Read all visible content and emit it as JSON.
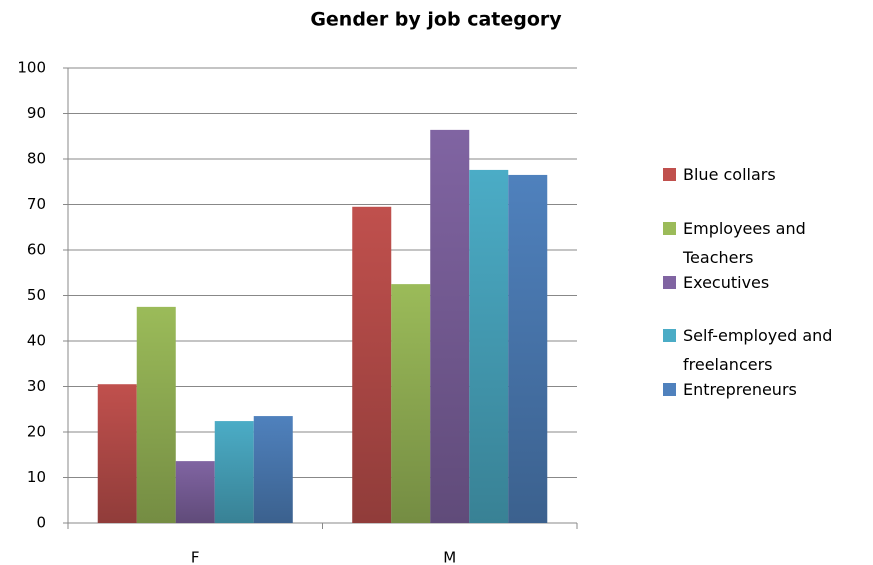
{
  "chart_data": {
    "type": "bar",
    "title": "Gender by job category",
    "categories": [
      "F",
      "M"
    ],
    "series": [
      {
        "name": "Blue collars",
        "color": "#c0504d",
        "values": [
          30.5,
          69.5
        ]
      },
      {
        "name": "Employees and Teachers",
        "color": "#9bbb59",
        "values": [
          47.5,
          52.5
        ]
      },
      {
        "name": "Executives",
        "color": "#8064a2",
        "values": [
          13.6,
          86.4
        ]
      },
      {
        "name": "Self-employed and freelancers",
        "color": "#4bacc6",
        "values": [
          22.4,
          77.6
        ]
      },
      {
        "name": "Entrepreneurs",
        "color": "#4f81bd",
        "values": [
          23.5,
          76.5
        ]
      }
    ],
    "ylim": [
      0,
      100
    ],
    "yticks": [
      0,
      10,
      20,
      30,
      40,
      50,
      60,
      70,
      80,
      90,
      100
    ],
    "grid": true,
    "legend": "right"
  }
}
